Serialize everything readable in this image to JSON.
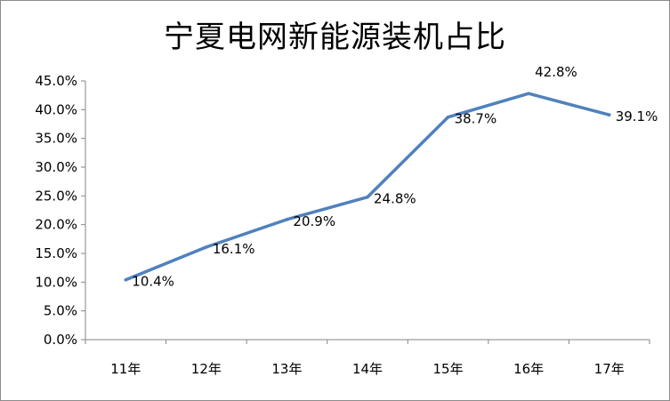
{
  "chart_data": {
    "type": "line",
    "title": "宁夏电网新能源装机占比",
    "categories": [
      "11年",
      "12年",
      "13年",
      "14年",
      "15年",
      "16年",
      "17年"
    ],
    "series": [
      {
        "values": [
          10.4,
          16.1,
          20.9,
          24.8,
          38.7,
          42.8,
          39.1
        ],
        "labels": [
          "10.4%",
          "16.1%",
          "20.9%",
          "24.8%",
          "38.7%",
          "42.8%",
          "39.1%"
        ],
        "color": "#4f81bd"
      }
    ],
    "y_ticks": [
      "0.0%",
      "5.0%",
      "10.0%",
      "15.0%",
      "20.0%",
      "25.0%",
      "30.0%",
      "35.0%",
      "40.0%",
      "45.0%"
    ],
    "ylim": [
      0,
      45
    ],
    "grid": false,
    "legend": "none"
  }
}
